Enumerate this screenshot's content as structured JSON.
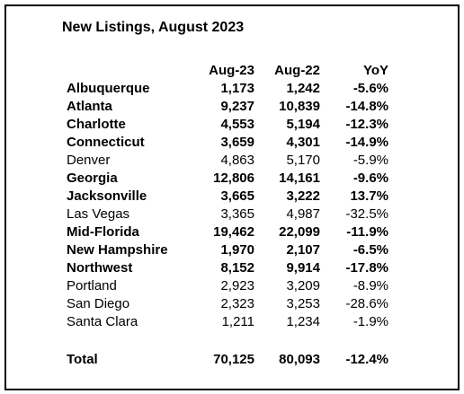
{
  "title": "New Listings, August 2023",
  "table": {
    "header": [
      "Aug-23",
      "Aug-22",
      "YoY"
    ],
    "rows": [
      {
        "name": "Albuquerque",
        "aug23": "1,173",
        "aug22": "1,242",
        "yoy": "-5.6%",
        "bold": true
      },
      {
        "name": "Atlanta",
        "aug23": "9,237",
        "aug22": "10,839",
        "yoy": "-14.8%",
        "bold": true
      },
      {
        "name": "Charlotte",
        "aug23": "4,553",
        "aug22": "5,194",
        "yoy": "-12.3%",
        "bold": true
      },
      {
        "name": "Connecticut",
        "aug23": "3,659",
        "aug22": "4,301",
        "yoy": "-14.9%",
        "bold": true
      },
      {
        "name": "Denver",
        "aug23": "4,863",
        "aug22": "5,170",
        "yoy": "-5.9%",
        "bold": false
      },
      {
        "name": "Georgia",
        "aug23": "12,806",
        "aug22": "14,161",
        "yoy": "-9.6%",
        "bold": true
      },
      {
        "name": "Jacksonville",
        "aug23": "3,665",
        "aug22": "3,222",
        "yoy": "13.7%",
        "bold": true
      },
      {
        "name": "Las Vegas",
        "aug23": "3,365",
        "aug22": "4,987",
        "yoy": "-32.5%",
        "bold": false
      },
      {
        "name": "Mid-Florida",
        "aug23": "19,462",
        "aug22": "22,099",
        "yoy": "-11.9%",
        "bold": true
      },
      {
        "name": "New Hampshire",
        "aug23": "1,970",
        "aug22": "2,107",
        "yoy": "-6.5%",
        "bold": true
      },
      {
        "name": "Northwest",
        "aug23": "8,152",
        "aug22": "9,914",
        "yoy": "-17.8%",
        "bold": true
      },
      {
        "name": "Portland",
        "aug23": "2,923",
        "aug22": "3,209",
        "yoy": "-8.9%",
        "bold": false
      },
      {
        "name": "San Diego",
        "aug23": "2,323",
        "aug22": "3,253",
        "yoy": "-28.6%",
        "bold": false
      },
      {
        "name": "Santa Clara",
        "aug23": "1,211",
        "aug22": "1,234",
        "yoy": "-1.9%",
        "bold": false
      }
    ],
    "total": {
      "name": "Total",
      "aug23": "70,125",
      "aug22": "80,093",
      "yoy": "-12.4%",
      "bold": true
    }
  }
}
